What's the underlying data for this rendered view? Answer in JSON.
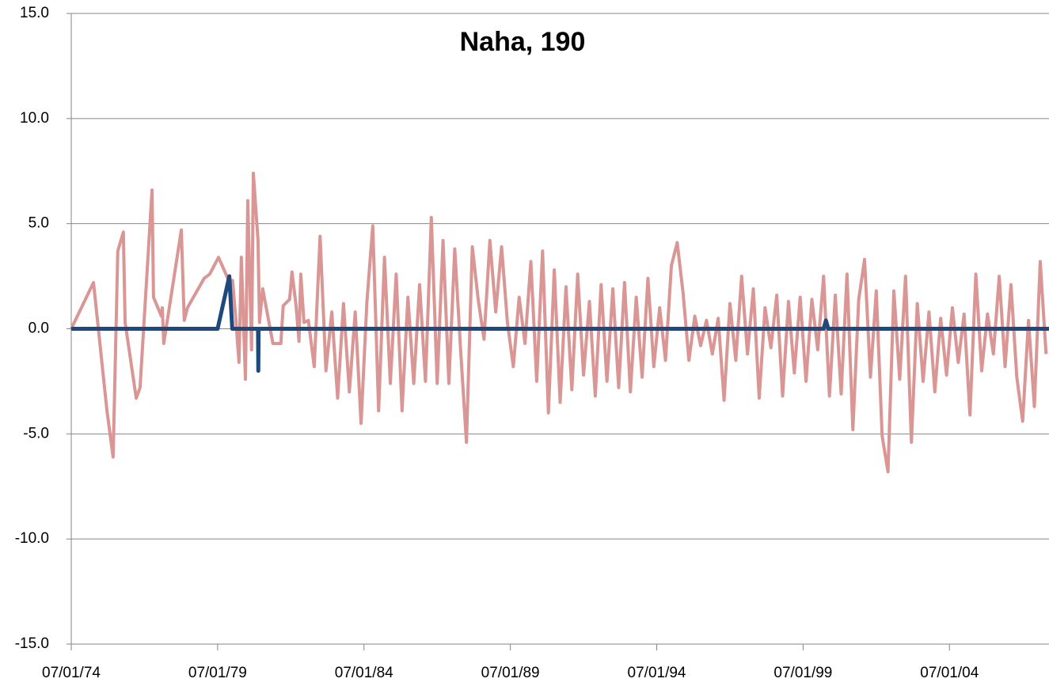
{
  "chart_data": {
    "type": "line",
    "title": "Naha, 190",
    "xlim": [
      1974.5,
      2007.9
    ],
    "xticks": [
      {
        "value": 1974.5,
        "label": "07/01/74"
      },
      {
        "value": 1979.5,
        "label": "07/01/79"
      },
      {
        "value": 1984.5,
        "label": "07/01/84"
      },
      {
        "value": 1989.5,
        "label": "07/01/89"
      },
      {
        "value": 1994.5,
        "label": "07/01/94"
      },
      {
        "value": 1999.5,
        "label": "07/01/99"
      },
      {
        "value": 2004.5,
        "label": "07/01/04"
      }
    ],
    "ylim": [
      -15,
      15
    ],
    "yticks": [
      {
        "value": -15,
        "label": "-15.0"
      },
      {
        "value": -10,
        "label": "-10.0"
      },
      {
        "value": -5,
        "label": "-5.0"
      },
      {
        "value": 0,
        "label": "0.0"
      },
      {
        "value": 5,
        "label": "5.0"
      },
      {
        "value": 10,
        "label": "10.0"
      },
      {
        "value": 15,
        "label": "15.0"
      }
    ],
    "grid": true,
    "series": [
      {
        "color": "#d99694",
        "x": [
          1974.5,
          1975.26,
          1975.72,
          1975.93,
          1976.09,
          1976.28,
          1976.34,
          1976.72,
          1976.85,
          1977.26,
          1977.31,
          1977.58,
          1977.61,
          1977.66,
          1978.26,
          1978.36,
          1978.47,
          1979.04,
          1979.23,
          1979.53,
          1979.91,
          1980.01,
          1980.12,
          1980.23,
          1980.31,
          1980.45,
          1980.53,
          1980.66,
          1980.72,
          1980.88,
          1980.93,
          1981.04,
          1981.39,
          1981.66,
          1981.74,
          1981.96,
          1982.04,
          1982.18,
          1982.28,
          1982.34,
          1982.45,
          1982.6,
          1982.8,
          1983.0,
          1983.2,
          1983.4,
          1983.6,
          1983.8,
          1984.0,
          1984.2,
          1984.4,
          1984.6,
          1984.8,
          1985.0,
          1985.2,
          1985.4,
          1985.6,
          1985.8,
          1986.0,
          1986.2,
          1986.4,
          1986.6,
          1986.8,
          1987.0,
          1987.2,
          1987.4,
          1987.6,
          1987.8,
          1988.0,
          1988.2,
          1988.4,
          1988.6,
          1988.8,
          1989.0,
          1989.2,
          1989.4,
          1989.6,
          1989.8,
          1990.0,
          1990.2,
          1990.4,
          1990.6,
          1990.8,
          1991.0,
          1991.2,
          1991.4,
          1991.6,
          1991.8,
          1992.0,
          1992.2,
          1992.4,
          1992.6,
          1992.8,
          1993.0,
          1993.2,
          1993.4,
          1993.6,
          1993.8,
          1994.0,
          1994.2,
          1994.4,
          1994.6,
          1994.8,
          1995.0,
          1995.2,
          1995.4,
          1995.6,
          1995.8,
          1996.0,
          1996.2,
          1996.4,
          1996.6,
          1996.8,
          1997.0,
          1997.2,
          1997.4,
          1997.6,
          1997.8,
          1998.0,
          1998.2,
          1998.4,
          1998.6,
          1998.8,
          1999.0,
          1999.2,
          1999.4,
          1999.6,
          1999.8,
          2000.0,
          2000.2,
          2000.4,
          2000.6,
          2000.8,
          2001.0,
          2001.2,
          2001.4,
          2001.6,
          2001.8,
          2002.0,
          2002.2,
          2002.4,
          2002.6,
          2002.8,
          2003.0,
          2003.2,
          2003.4,
          2003.6,
          2003.8,
          2004.0,
          2004.2,
          2004.4,
          2004.6,
          2004.8,
          2005.0,
          2005.2,
          2005.4,
          2005.6,
          2005.8,
          2006.0,
          2006.2,
          2006.4,
          2006.6,
          2006.8,
          2007.0,
          2007.2,
          2007.4,
          2007.6,
          2007.8
        ],
        "values": [
          0.0,
          2.2,
          -3.9,
          -6.1,
          3.7,
          4.6,
          0.3,
          -3.3,
          -2.8,
          6.6,
          1.5,
          0.6,
          1.0,
          -0.7,
          4.7,
          0.4,
          1.0,
          2.4,
          2.6,
          3.4,
          2.2,
          2.3,
          0.5,
          -1.6,
          3.4,
          -2.4,
          6.1,
          -1.0,
          7.4,
          4.2,
          0.3,
          1.9,
          -0.7,
          -0.7,
          1.1,
          1.4,
          2.7,
          1.1,
          -0.6,
          2.6,
          0.3,
          0.4,
          -1.8,
          4.4,
          -2.0,
          0.8,
          -3.3,
          1.2,
          -3.0,
          0.8,
          -4.5,
          1.3,
          4.9,
          -3.9,
          3.4,
          -2.6,
          2.6,
          -3.9,
          1.5,
          -2.6,
          2.1,
          -2.5,
          5.3,
          -2.6,
          4.2,
          -2.6,
          3.8,
          -1.0,
          -5.4,
          3.9,
          1.4,
          -0.5,
          4.2,
          0.8,
          3.9,
          0.3,
          -1.8,
          1.5,
          -0.7,
          3.2,
          -2.5,
          3.7,
          -4.0,
          2.8,
          -3.5,
          2.0,
          -2.9,
          2.6,
          -2.2,
          1.3,
          -3.2,
          2.1,
          -2.5,
          1.9,
          -2.8,
          2.2,
          -3.0,
          1.5,
          -2.3,
          2.4,
          -1.8,
          1.0,
          -1.5,
          3.0,
          4.1,
          1.7,
          -1.5,
          0.6,
          -0.8,
          0.4,
          -1.2,
          0.5,
          -3.4,
          1.2,
          -1.5,
          2.5,
          -1.2,
          1.9,
          -3.3,
          1.0,
          -0.9,
          1.6,
          -3.2,
          1.3,
          -2.1,
          1.5,
          -2.5,
          1.4,
          -1.0,
          2.5,
          -3.2,
          1.6,
          -3.1,
          2.6,
          -4.8,
          1.4,
          3.3,
          -2.3,
          1.8,
          -5.1,
          -6.8,
          1.8,
          -2.4,
          2.5,
          -5.4,
          1.2,
          -2.5,
          0.8,
          -3.0,
          0.5,
          -2.2,
          1.0,
          -1.6,
          0.7,
          -4.1,
          2.6,
          -2.0,
          0.7,
          -1.2,
          2.5,
          -1.8,
          2.1,
          -2.3,
          -4.4,
          0.4,
          -3.7,
          3.2,
          -1.2
        ]
      },
      {
        "color": "#1f497d",
        "x": [
          1974.5,
          1979.5,
          1979.9,
          1980.0,
          1980.88,
          1980.89,
          1980.9,
          2000.2,
          2000.28,
          2000.36,
          2007.9
        ],
        "values": [
          0,
          0,
          2.5,
          0,
          0,
          -2.0,
          0,
          0,
          0.4,
          0,
          0
        ]
      }
    ]
  }
}
